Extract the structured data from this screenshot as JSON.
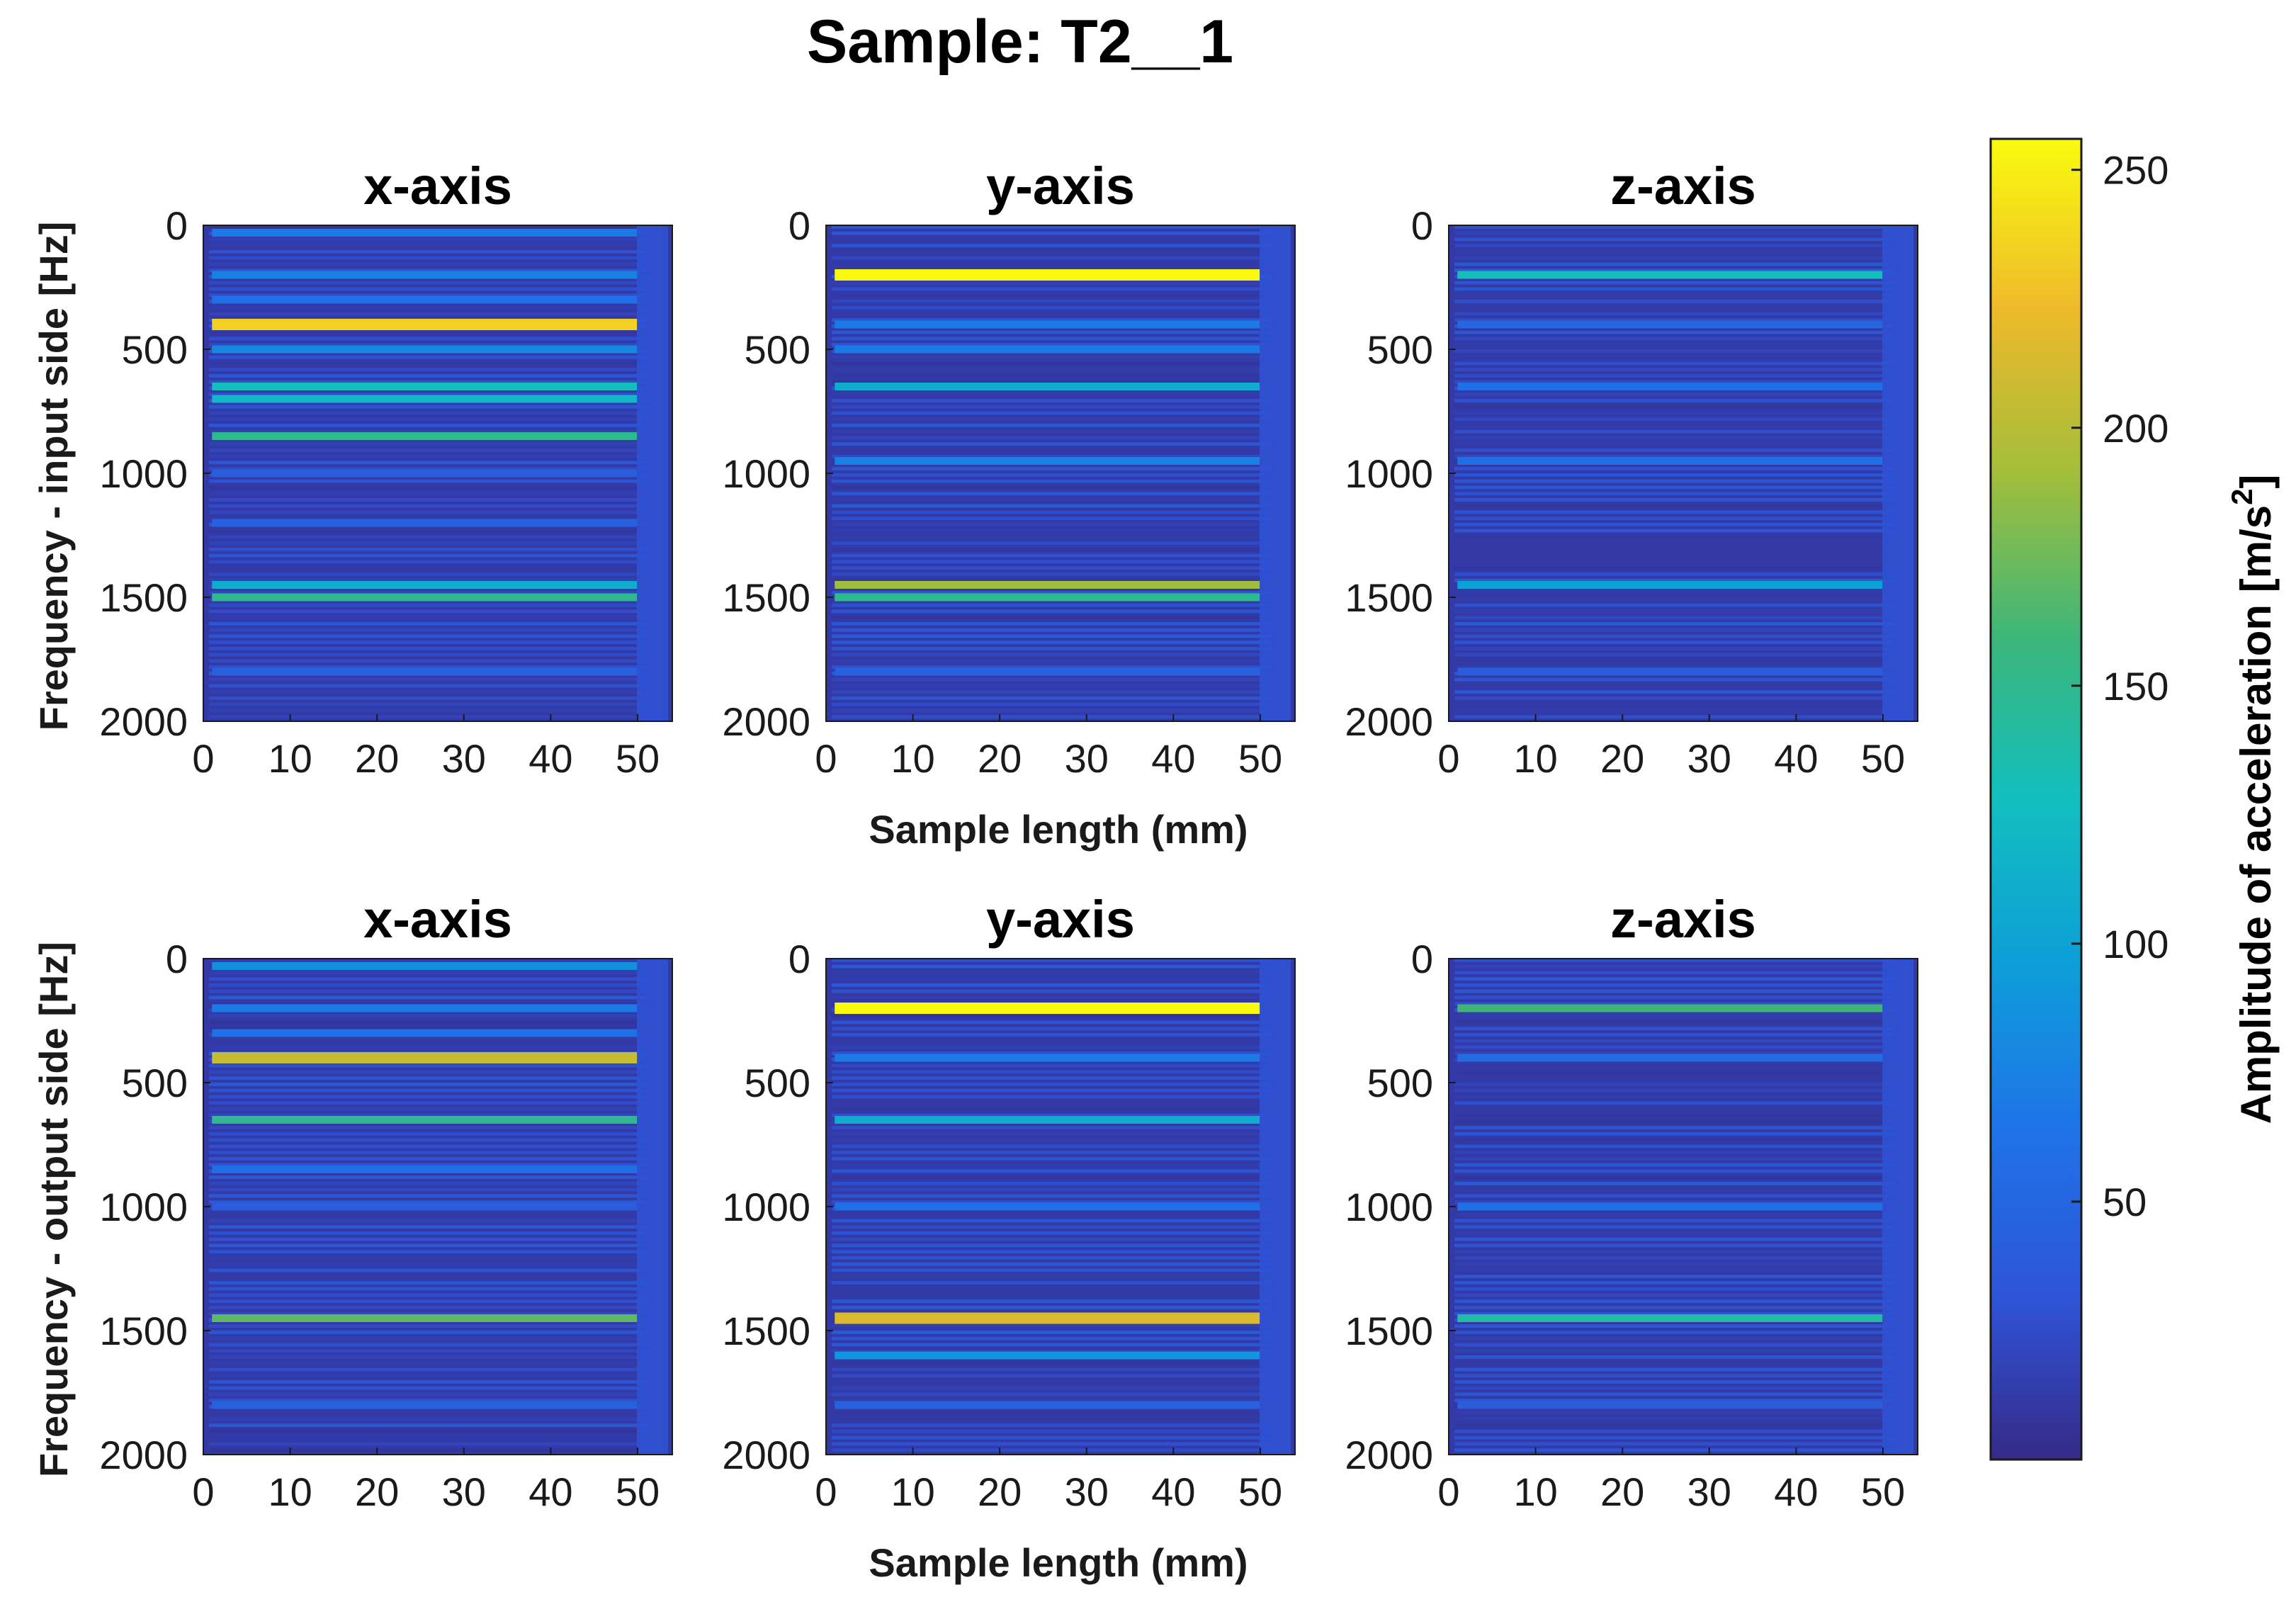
{
  "chart_data": {
    "type": "heatmap",
    "title": "Sample: T2__1",
    "x_tick_labels": [
      "0",
      "10",
      "20",
      "30",
      "40",
      "50"
    ],
    "y_tick_labels": [
      "0",
      "500",
      "1000",
      "1500",
      "2000"
    ],
    "x_range": [
      0,
      54
    ],
    "y_range": [
      0,
      2000
    ],
    "y_reversed": true,
    "colormap": "parula",
    "colors": {
      "low": "#352a87",
      "mid": "#0d9fd8",
      "high": "#f9fb0e",
      "accent_green": "#3bb67a"
    },
    "colorbar": {
      "label_prefix": "Amplitude of acceleration [m/s",
      "label_power": "2",
      "label_suffix": "]",
      "ticks": [
        "250",
        "200",
        "150",
        "100",
        "50"
      ],
      "range": [
        0,
        256
      ]
    },
    "rows": [
      {
        "ylabel": "Frequency - input side [Hz]",
        "xlabel": "",
        "panels": [
          {
            "title": "x-axis",
            "bands": [
              {
                "f": 30,
                "amp": 70
              },
              {
                "f": 200,
                "amp": 75
              },
              {
                "f": 300,
                "amp": 60
              },
              {
                "f": 400,
                "amp": 235
              },
              {
                "f": 500,
                "amp": 80
              },
              {
                "f": 650,
                "amp": 130
              },
              {
                "f": 700,
                "amp": 120
              },
              {
                "f": 850,
                "amp": 150
              },
              {
                "f": 1000,
                "amp": 40
              },
              {
                "f": 1200,
                "amp": 45
              },
              {
                "f": 1450,
                "amp": 110
              },
              {
                "f": 1500,
                "amp": 150
              },
              {
                "f": 1800,
                "amp": 45
              }
            ]
          },
          {
            "title": "y-axis",
            "bands": [
              {
                "f": 200,
                "amp": 255
              },
              {
                "f": 400,
                "amp": 70
              },
              {
                "f": 500,
                "amp": 70
              },
              {
                "f": 650,
                "amp": 110
              },
              {
                "f": 950,
                "amp": 75
              },
              {
                "f": 1450,
                "amp": 190
              },
              {
                "f": 1500,
                "amp": 150
              },
              {
                "f": 1800,
                "amp": 45
              }
            ]
          },
          {
            "title": "z-axis",
            "bands": [
              {
                "f": 200,
                "amp": 130
              },
              {
                "f": 400,
                "amp": 50
              },
              {
                "f": 650,
                "amp": 60
              },
              {
                "f": 950,
                "amp": 60
              },
              {
                "f": 1450,
                "amp": 100
              },
              {
                "f": 1800,
                "amp": 40
              }
            ]
          }
        ]
      },
      {
        "ylabel": "Frequency - output side [Hz]",
        "xlabel": "Sample length (mm)",
        "panels": [
          {
            "title": "x-axis",
            "bands": [
              {
                "f": 30,
                "amp": 85
              },
              {
                "f": 200,
                "amp": 70
              },
              {
                "f": 300,
                "amp": 60
              },
              {
                "f": 400,
                "amp": 205
              },
              {
                "f": 650,
                "amp": 150
              },
              {
                "f": 850,
                "amp": 60
              },
              {
                "f": 1000,
                "amp": 40
              },
              {
                "f": 1450,
                "amp": 170
              },
              {
                "f": 1800,
                "amp": 45
              }
            ]
          },
          {
            "title": "y-axis",
            "bands": [
              {
                "f": 200,
                "amp": 255
              },
              {
                "f": 400,
                "amp": 70
              },
              {
                "f": 650,
                "amp": 110
              },
              {
                "f": 1000,
                "amp": 60
              },
              {
                "f": 1450,
                "amp": 215
              },
              {
                "f": 1600,
                "amp": 90
              },
              {
                "f": 1800,
                "amp": 45
              }
            ]
          },
          {
            "title": "z-axis",
            "bands": [
              {
                "f": 200,
                "amp": 160
              },
              {
                "f": 400,
                "amp": 55
              },
              {
                "f": 1000,
                "amp": 60
              },
              {
                "f": 1450,
                "amp": 140
              },
              {
                "f": 1800,
                "amp": 40
              }
            ]
          }
        ]
      }
    ],
    "shared_xlabel_top": "Sample length (mm)"
  }
}
